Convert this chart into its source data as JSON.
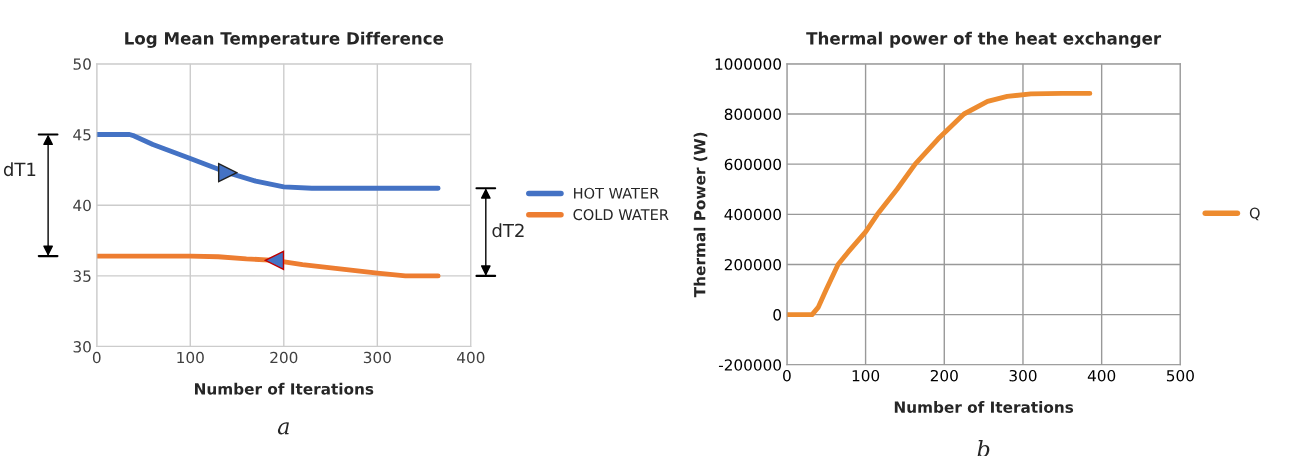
{
  "chart_data": [
    {
      "type": "line",
      "title": "Log Mean Temperature Difference",
      "xlabel": "Number of Iterations",
      "xlim": [
        0,
        400
      ],
      "xticks": [
        0,
        100,
        200,
        300,
        400
      ],
      "ylim": [
        30,
        50
      ],
      "yticks": [
        30,
        35,
        40,
        45,
        50
      ],
      "grid": true,
      "legend": "right",
      "marker": "none",
      "line_style": "solid",
      "series": [
        {
          "name": "HOT WATER",
          "color": "#4472c4",
          "x": [
            0,
            20,
            35,
            40,
            60,
            100,
            140,
            170,
            200,
            230,
            300,
            365
          ],
          "values": [
            45,
            45,
            45,
            44.9,
            44.3,
            43.3,
            42.3,
            41.7,
            41.3,
            41.2,
            41.2,
            41.2
          ]
        },
        {
          "name": "COLD WATER",
          "color": "#ed7d31",
          "x": [
            0,
            50,
            100,
            130,
            160,
            190,
            220,
            260,
            300,
            330,
            365
          ],
          "values": [
            36.4,
            36.4,
            36.4,
            36.35,
            36.2,
            36.1,
            35.8,
            35.5,
            35.2,
            35.0,
            35.0
          ]
        }
      ],
      "annotations": [
        "dT1",
        "dT2",
        "a"
      ]
    },
    {
      "type": "line",
      "title": "Thermal power of the heat exchanger",
      "xlabel": "Number of Iterations",
      "ylabel": "Thermal Power (W)",
      "xlim": [
        0,
        500
      ],
      "xticks": [
        0,
        100,
        200,
        300,
        400,
        500
      ],
      "ylim": [
        -200000,
        1000000
      ],
      "yticks": [
        -200000,
        0,
        200000,
        400000,
        600000,
        800000,
        1000000
      ],
      "grid": true,
      "legend": "right",
      "marker": "none",
      "line_style": "solid",
      "series": [
        {
          "name": "Q",
          "color": "#ed8b2f",
          "x": [
            0,
            20,
            32,
            40,
            50,
            65,
            78,
            100,
            115,
            140,
            163,
            192,
            225,
            255,
            280,
            310,
            350,
            385
          ],
          "values": [
            0,
            0,
            0,
            30000,
            100000,
            200000,
            250000,
            330000,
            400000,
            500000,
            600000,
            700000,
            800000,
            850000,
            870000,
            880000,
            882000,
            882000
          ]
        }
      ],
      "annotations": [
        "b"
      ]
    }
  ]
}
